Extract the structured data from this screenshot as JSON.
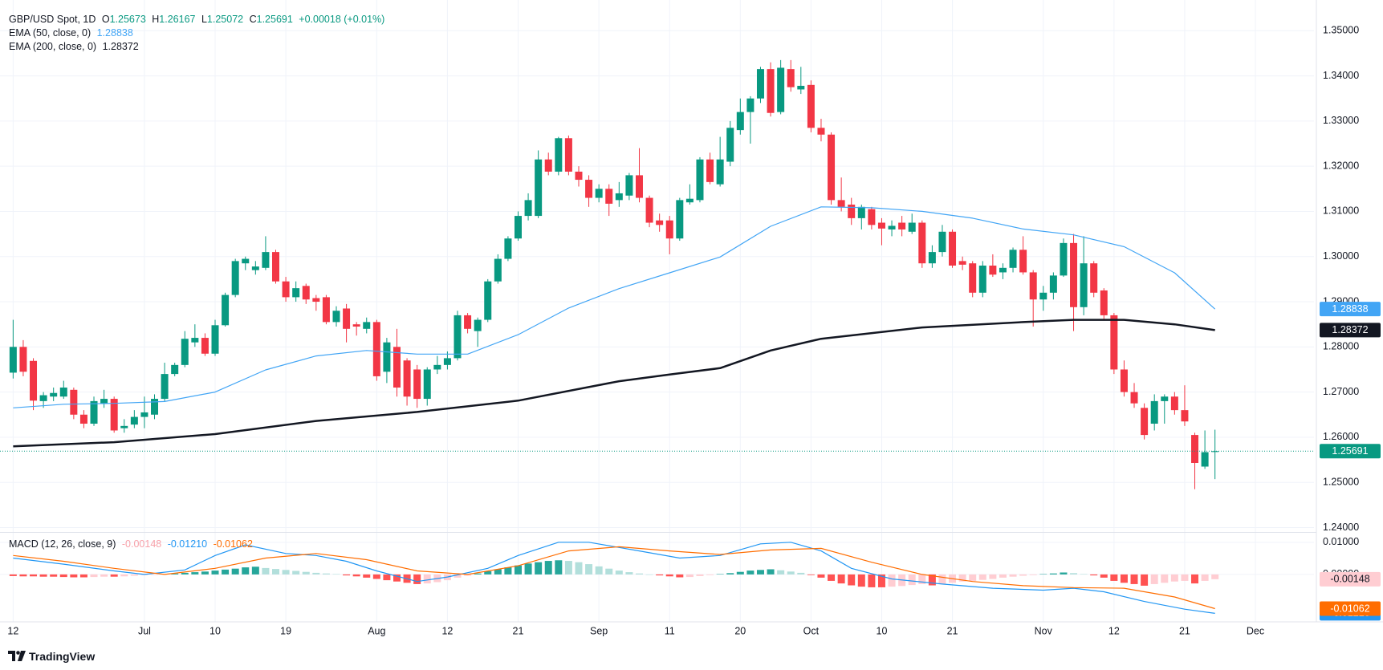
{
  "chart_data": {
    "type": "candlestick",
    "header": {
      "symbol": "GBP/USD Spot, 1D",
      "keys": [
        "O",
        "H",
        "L",
        "C"
      ],
      "change": "+0.00018 (+0.01%)"
    },
    "up_color": "#089981",
    "down_color": "#f23645",
    "xlim": [
      -1.3,
      128.8
    ],
    "xticks": [
      {
        "value": 0,
        "label": "12"
      },
      {
        "value": 13,
        "label": "Jul"
      },
      {
        "value": 20,
        "label": "10"
      },
      {
        "value": 27,
        "label": "19"
      },
      {
        "value": 36,
        "label": "Aug"
      },
      {
        "value": 43,
        "label": "12"
      },
      {
        "value": 50,
        "label": "21"
      },
      {
        "value": 58,
        "label": "Sep"
      },
      {
        "value": 65,
        "label": "11"
      },
      {
        "value": 72,
        "label": "20"
      },
      {
        "value": 79,
        "label": "Oct"
      },
      {
        "value": 86,
        "label": "10"
      },
      {
        "value": 93,
        "label": "21"
      },
      {
        "value": 102,
        "label": "Nov"
      },
      {
        "value": 109,
        "label": "12"
      },
      {
        "value": 116,
        "label": "21"
      },
      {
        "value": 123,
        "label": "Dec"
      }
    ],
    "ylim": [
      1.2392,
      1.3568
    ],
    "yticks": [
      {
        "value": 1.24,
        "label": "1.24000"
      },
      {
        "value": 1.25,
        "label": "1.25000"
      },
      {
        "value": 1.26,
        "label": "1.26000"
      },
      {
        "value": 1.27,
        "label": "1.27000"
      },
      {
        "value": 1.28,
        "label": "1.28000"
      },
      {
        "value": 1.29,
        "label": "1.29000"
      },
      {
        "value": 1.3,
        "label": "1.30000"
      },
      {
        "value": 1.31,
        "label": "1.31000"
      },
      {
        "value": 1.32,
        "label": "1.32000"
      },
      {
        "value": 1.33,
        "label": "1.33000"
      },
      {
        "value": 1.34,
        "label": "1.34000"
      },
      {
        "value": 1.35,
        "label": "1.35000"
      }
    ],
    "grid": true,
    "open": [
      1.2743,
      1.28,
      1.2769,
      1.268,
      1.269,
      1.269,
      1.2705,
      1.265,
      1.263,
      1.2675,
      1.2685,
      1.262,
      1.2628,
      1.2645,
      1.265,
      1.2685,
      1.274,
      1.276,
      1.281,
      1.282,
      1.2785,
      1.2848,
      1.2915,
      1.2985,
      1.297,
      1.2975,
      1.301,
      1.2945,
      1.291,
      1.2935,
      1.2908,
      1.291,
      1.2855,
      1.2885,
      1.285,
      1.284,
      1.2855,
      1.2745,
      1.28,
      1.277,
      1.275,
      1.2685,
      1.275,
      1.276,
      1.2775,
      1.287,
      1.2835,
      1.286,
      1.2945,
      1.2995,
      1.304,
      1.309,
      1.309,
      1.3215,
      1.3188,
      1.3262,
      1.3188,
      1.317,
      1.313,
      1.315,
      1.3125,
      1.3135,
      1.318,
      1.313,
      1.308,
      1.308,
      1.304,
      1.312,
      1.3125,
      1.3215,
      1.316,
      1.321,
      1.328,
      1.332,
      1.335,
      1.3415,
      1.332,
      1.3415,
      1.337,
      1.338,
      1.3285,
      1.327,
      1.3125,
      1.3115,
      1.3085,
      1.3105,
      1.3075,
      1.306,
      1.3075,
      1.3055,
      1.3075,
      1.2985,
      1.301,
      1.3055,
      1.299,
      1.2985,
      1.292,
      1.298,
      1.2965,
      1.2975,
      1.3015,
      1.2965,
      1.2905,
      1.292,
      1.2958,
      1.303,
      1.2888,
      1.2985,
      1.2925,
      1.287,
      1.275,
      1.27,
      1.2665,
      1.263,
      1.268,
      1.269,
      1.266,
      1.2605,
      1.2535,
      1.25673
    ],
    "high": [
      1.286,
      1.2815,
      1.2775,
      1.27,
      1.271,
      1.2725,
      1.271,
      1.266,
      1.269,
      1.2705,
      1.269,
      1.264,
      1.266,
      1.269,
      1.2695,
      1.2765,
      1.2765,
      1.2835,
      1.285,
      1.283,
      1.286,
      1.292,
      1.2995,
      1.3,
      1.299,
      1.3045,
      1.3015,
      1.2955,
      1.2945,
      1.294,
      1.2915,
      1.2915,
      1.289,
      1.2895,
      1.2855,
      1.2865,
      1.286,
      1.282,
      1.284,
      1.2775,
      1.276,
      1.2755,
      1.278,
      1.279,
      1.288,
      1.2875,
      1.2865,
      1.295,
      1.3005,
      1.3045,
      1.31,
      1.314,
      1.3235,
      1.323,
      1.3265,
      1.3268,
      1.32,
      1.318,
      1.316,
      1.316,
      1.3165,
      1.3185,
      1.324,
      1.3135,
      1.3095,
      1.309,
      1.313,
      1.316,
      1.322,
      1.323,
      1.3265,
      1.33,
      1.335,
      1.3355,
      1.342,
      1.343,
      1.3435,
      1.3435,
      1.342,
      1.339,
      1.3305,
      1.3275,
      1.3175,
      1.313,
      1.3115,
      1.311,
      1.3085,
      1.308,
      1.309,
      1.3095,
      1.308,
      1.3025,
      1.307,
      1.306,
      1.3,
      1.299,
      1.299,
      1.3005,
      1.2985,
      1.302,
      1.3045,
      1.297,
      1.2935,
      1.2965,
      1.304,
      1.305,
      1.3045,
      1.299,
      1.293,
      1.2875,
      1.277,
      1.272,
      1.2675,
      1.2695,
      1.2695,
      1.27,
      1.2715,
      1.261,
      1.2615,
      1.26167
    ],
    "low": [
      1.273,
      1.2735,
      1.266,
      1.2665,
      1.268,
      1.2685,
      1.264,
      1.262,
      1.2625,
      1.2665,
      1.261,
      1.261,
      1.262,
      1.262,
      1.264,
      1.268,
      1.2735,
      1.2755,
      1.28,
      1.278,
      1.278,
      1.2845,
      1.291,
      1.297,
      1.296,
      1.297,
      1.294,
      1.29,
      1.29,
      1.2895,
      1.288,
      1.285,
      1.2845,
      1.281,
      1.2825,
      1.283,
      1.2725,
      1.272,
      1.269,
      1.267,
      1.2665,
      1.267,
      1.274,
      1.275,
      1.277,
      1.283,
      1.28,
      1.2855,
      1.294,
      1.299,
      1.3035,
      1.308,
      1.3085,
      1.318,
      1.318,
      1.318,
      1.3155,
      1.311,
      1.312,
      1.309,
      1.311,
      1.3125,
      1.312,
      1.3065,
      1.3055,
      1.3005,
      1.3035,
      1.3115,
      1.312,
      1.316,
      1.3155,
      1.32,
      1.327,
      1.325,
      1.334,
      1.331,
      1.3315,
      1.3365,
      1.336,
      1.3275,
      1.3255,
      1.3115,
      1.31,
      1.307,
      1.306,
      1.306,
      1.3025,
      1.3045,
      1.3045,
      1.305,
      1.2975,
      1.2975,
      1.3,
      1.2975,
      1.297,
      1.291,
      1.291,
      1.2955,
      1.295,
      1.2965,
      1.296,
      1.2845,
      1.288,
      1.2905,
      1.2955,
      1.2835,
      1.287,
      1.291,
      1.286,
      1.274,
      1.269,
      1.2665,
      1.2595,
      1.2615,
      1.263,
      1.265,
      1.2625,
      1.2485,
      1.253,
      1.25072
    ],
    "close": [
      1.28,
      1.2745,
      1.2681,
      1.2693,
      1.2698,
      1.271,
      1.265,
      1.263,
      1.268,
      1.2685,
      1.2615,
      1.2625,
      1.2645,
      1.2655,
      1.2685,
      1.274,
      1.276,
      1.2818,
      1.282,
      1.2785,
      1.2848,
      1.2915,
      1.299,
      1.2995,
      1.2978,
      1.301,
      1.2945,
      1.291,
      1.293,
      1.2905,
      1.29,
      1.2855,
      1.288,
      1.284,
      1.2845,
      1.2855,
      1.2735,
      1.281,
      1.271,
      1.269,
      1.2685,
      1.275,
      1.276,
      1.2775,
      1.287,
      1.284,
      1.286,
      1.2945,
      1.2995,
      1.304,
      1.309,
      1.3125,
      1.3215,
      1.3188,
      1.3262,
      1.3188,
      1.317,
      1.313,
      1.315,
      1.3117,
      1.314,
      1.318,
      1.313,
      1.3075,
      1.307,
      1.304,
      1.3125,
      1.3128,
      1.3215,
      1.3165,
      1.3215,
      1.3285,
      1.332,
      1.335,
      1.3415,
      1.3318,
      1.3418,
      1.3375,
      1.3378,
      1.3285,
      1.327,
      1.3125,
      1.311,
      1.3085,
      1.311,
      1.307,
      1.3062,
      1.3068,
      1.306,
      1.3075,
      1.2985,
      1.301,
      1.3055,
      1.298,
      1.2982,
      1.292,
      1.298,
      1.296,
      1.2975,
      1.3015,
      1.2965,
      1.2905,
      1.292,
      1.2958,
      1.303,
      1.2888,
      1.2985,
      1.292,
      1.287,
      1.275,
      1.27,
      1.2675,
      1.2605,
      1.268,
      1.269,
      1.266,
      1.2635,
      1.2543,
      1.2567,
      1.25691
    ],
    "overlays": [
      {
        "name": "EMA (50, close, 0)",
        "color": "#42a5f5",
        "width": 1.2,
        "value_label": "1.28838",
        "x": [
          0,
          5,
          10,
          15,
          20,
          25,
          30,
          35,
          40,
          45,
          50,
          55,
          60,
          65,
          70,
          75,
          80,
          85,
          90,
          95,
          100,
          105,
          110,
          115,
          119
        ],
        "values": [
          1.2665,
          1.2673,
          1.2675,
          1.2679,
          1.27,
          1.2749,
          1.278,
          1.2792,
          1.2784,
          1.2784,
          1.2827,
          1.2886,
          1.2929,
          1.2964,
          1.2999,
          1.3067,
          1.311,
          1.3108,
          1.31,
          1.3085,
          1.3061,
          1.3048,
          1.3022,
          1.2964,
          1.28838
        ]
      },
      {
        "name": "EMA (200, close, 0)",
        "color": "#131722",
        "width": 2.5,
        "value_label": "1.28372",
        "x": [
          0,
          10,
          20,
          30,
          40,
          50,
          60,
          65,
          70,
          75,
          80,
          90,
          100,
          105,
          110,
          115,
          119
        ],
        "values": [
          1.258,
          1.2589,
          1.2607,
          1.2636,
          1.2656,
          1.2681,
          1.2724,
          1.2739,
          1.2753,
          1.2792,
          1.2818,
          1.2843,
          1.2855,
          1.286,
          1.286,
          1.285,
          1.28372
        ]
      }
    ],
    "macd": {
      "title": "MACD (12, 26, close, 9)",
      "ylim": [
        -0.0135,
        0.0127
      ],
      "yticks": [
        {
          "value": 0.01,
          "label": "0.01000"
        },
        {
          "value": 0,
          "label": "0.00000"
        }
      ],
      "histogram": {
        "value_label": "-0.00148",
        "colors": {
          "up_rising": "#26a69a",
          "up_falling": "#b2dfdb",
          "down_falling": "#ff5252",
          "down_rising": "#ffcdd2"
        },
        "values": [
          -0.0005,
          -0.0006,
          -0.0006,
          -0.0007,
          -0.0007,
          -0.0008,
          -0.0009,
          -0.0009,
          -0.0008,
          -0.0007,
          -0.0007,
          -0.0006,
          -0.0004,
          -0.0002,
          -0.0001,
          0.0001,
          0.0003,
          0.0005,
          0.0007,
          0.0009,
          0.0012,
          0.0015,
          0.0018,
          0.0022,
          0.0024,
          0.002,
          0.0017,
          0.0014,
          0.0011,
          0.0008,
          0.0005,
          0.0003,
          0.0001,
          -0.0003,
          -0.0006,
          -0.001,
          -0.0014,
          -0.0018,
          -0.0022,
          -0.0026,
          -0.003,
          -0.0028,
          -0.0024,
          -0.0018,
          -0.001,
          -0.0004,
          0.0003,
          0.001,
          0.0016,
          0.0022,
          0.0028,
          0.0034,
          0.0038,
          0.0042,
          0.0044,
          0.0042,
          0.0038,
          0.0032,
          0.0025,
          0.0018,
          0.0012,
          0.0007,
          0.0003,
          0,
          -0.0003,
          -0.0006,
          -0.0009,
          -0.0008,
          -0.0005,
          -0.0002,
          0.0001,
          0.0004,
          0.0008,
          0.0012,
          0.0014,
          0.0016,
          0.0013,
          0.0009,
          0.0005,
          -0.0002,
          -0.001,
          -0.002,
          -0.0028,
          -0.0034,
          -0.0038,
          -0.004,
          -0.004,
          -0.0038,
          -0.0036,
          -0.0033,
          -0.003,
          -0.0034,
          -0.003,
          -0.0026,
          -0.0022,
          -0.002,
          -0.0017,
          -0.0014,
          -0.001,
          -0.0007,
          -0.0004,
          -0.0002,
          0.0001,
          0.0003,
          0.0006,
          0.0004,
          0.0001,
          -0.0003,
          -0.001,
          -0.002,
          -0.0026,
          -0.003,
          -0.0035,
          -0.003,
          -0.0026,
          -0.0022,
          -0.002,
          -0.0028,
          -0.002,
          -0.00148
        ]
      },
      "series": [
        {
          "color": "#2196f3",
          "value_label": "-0.01210",
          "x": [
            0,
            5,
            10,
            13,
            17,
            20,
            23,
            27,
            30,
            33,
            36,
            40,
            43,
            47,
            50,
            54,
            57,
            62,
            66,
            70,
            74,
            77,
            80,
            83,
            87,
            92,
            97,
            102,
            105,
            108,
            112,
            116,
            119
          ],
          "values": [
            0.0051,
            0.0032,
            0.0011,
            0,
            0.0014,
            0.0059,
            0.0092,
            0.0065,
            0.0059,
            0.0041,
            0.0011,
            -0.0022,
            -0.0008,
            0.0019,
            0.0059,
            0.01,
            0.01,
            0.0073,
            0.0051,
            0.0059,
            0.0095,
            0.01,
            0.0073,
            0.0019,
            -0.0014,
            -0.003,
            -0.0043,
            -0.0049,
            -0.0043,
            -0.0054,
            -0.0084,
            -0.0108,
            -0.0121
          ]
        },
        {
          "color": "#ff6d00",
          "value_label": "-0.01062",
          "x": [
            0,
            5,
            10,
            15,
            20,
            25,
            30,
            35,
            40,
            45,
            50,
            55,
            60,
            65,
            70,
            75,
            80,
            85,
            90,
            95,
            100,
            105,
            110,
            115,
            119
          ],
          "values": [
            0.0059,
            0.0041,
            0.0019,
            0,
            0.0019,
            0.0051,
            0.0065,
            0.0046,
            0.0011,
            0,
            0.0027,
            0.0073,
            0.0086,
            0.0073,
            0.0062,
            0.0076,
            0.0081,
            0.0038,
            0,
            -0.0022,
            -0.0035,
            -0.0041,
            -0.0043,
            -0.007,
            -0.01062
          ]
        }
      ]
    },
    "footer": {
      "brand": "TradingView"
    }
  }
}
